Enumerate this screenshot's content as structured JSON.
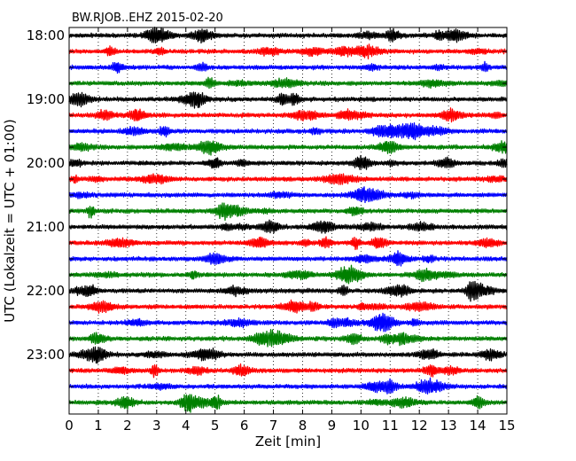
{
  "chart_data": {
    "type": "line",
    "title": "BW.RJOB..EHZ 2015-02-20",
    "xlabel": "Zeit  [min]",
    "ylabel": "UTC (Lokalzeit = UTC + 01:00)",
    "xlim": [
      0,
      15
    ],
    "xticks": [
      "0",
      "1",
      "2",
      "3",
      "4",
      "5",
      "6",
      "7",
      "8",
      "9",
      "10",
      "11",
      "12",
      "13",
      "14",
      "15"
    ],
    "yticks": [
      "18:00",
      "19:00",
      "20:00",
      "21:00",
      "22:00",
      "23:00"
    ],
    "grid": true,
    "trace_colors": [
      "#000000",
      "#ff0000",
      "#0000ff",
      "#008000"
    ],
    "traces": [
      {
        "start": "18:00",
        "color": "#000000"
      },
      {
        "start": "18:15",
        "color": "#ff0000"
      },
      {
        "start": "18:30",
        "color": "#0000ff"
      },
      {
        "start": "18:45",
        "color": "#008000"
      },
      {
        "start": "19:00",
        "color": "#000000"
      },
      {
        "start": "19:15",
        "color": "#ff0000"
      },
      {
        "start": "19:30",
        "color": "#0000ff"
      },
      {
        "start": "19:45",
        "color": "#008000"
      },
      {
        "start": "20:00",
        "color": "#000000"
      },
      {
        "start": "20:15",
        "color": "#ff0000"
      },
      {
        "start": "20:30",
        "color": "#0000ff"
      },
      {
        "start": "20:45",
        "color": "#008000"
      },
      {
        "start": "21:00",
        "color": "#000000"
      },
      {
        "start": "21:15",
        "color": "#ff0000"
      },
      {
        "start": "21:30",
        "color": "#0000ff"
      },
      {
        "start": "21:45",
        "color": "#008000"
      },
      {
        "start": "22:00",
        "color": "#000000"
      },
      {
        "start": "22:15",
        "color": "#ff0000"
      },
      {
        "start": "22:30",
        "color": "#0000ff"
      },
      {
        "start": "22:45",
        "color": "#008000"
      },
      {
        "start": "23:00",
        "color": "#000000"
      },
      {
        "start": "23:15",
        "color": "#ff0000"
      },
      {
        "start": "23:30",
        "color": "#0000ff"
      },
      {
        "start": "23:45",
        "color": "#008000"
      }
    ]
  }
}
